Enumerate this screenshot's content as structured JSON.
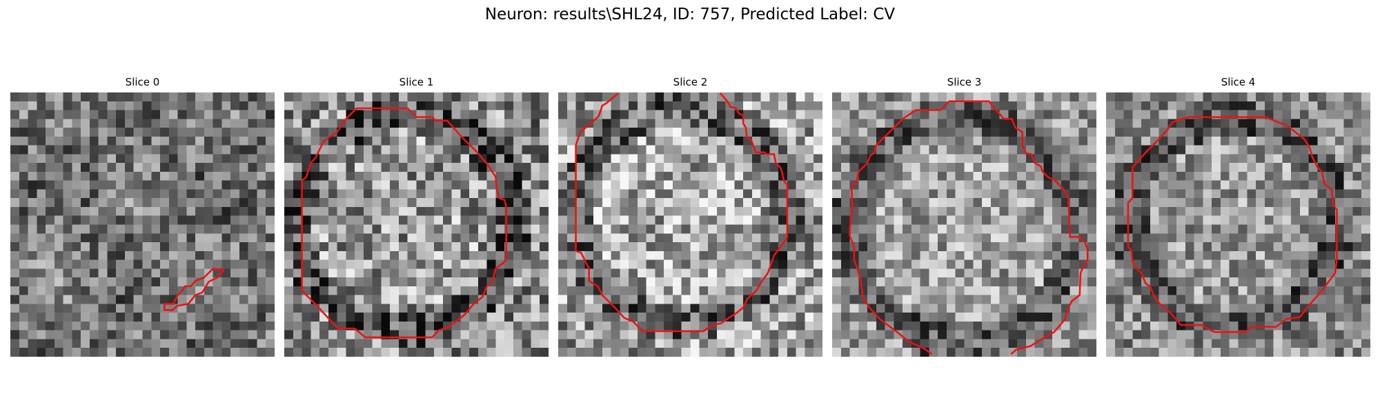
{
  "figure": {
    "title": "Neuron: results\\SHL24, ID: 757, Predicted Label: CV"
  },
  "panels": [
    {
      "title": "Slice 0",
      "seed": 11,
      "base": 0.45,
      "contrast": 0.55
    },
    {
      "title": "Slice 1",
      "seed": 23,
      "base": 0.55,
      "contrast": 0.7
    },
    {
      "title": "Slice 2",
      "seed": 37,
      "base": 0.62,
      "contrast": 0.7
    },
    {
      "title": "Slice 3",
      "seed": 41,
      "base": 0.58,
      "contrast": 0.55
    },
    {
      "title": "Slice 4",
      "seed": 53,
      "base": 0.55,
      "contrast": 0.55
    }
  ],
  "colors": {
    "contour": "#ee1111",
    "background": "#ffffff"
  }
}
